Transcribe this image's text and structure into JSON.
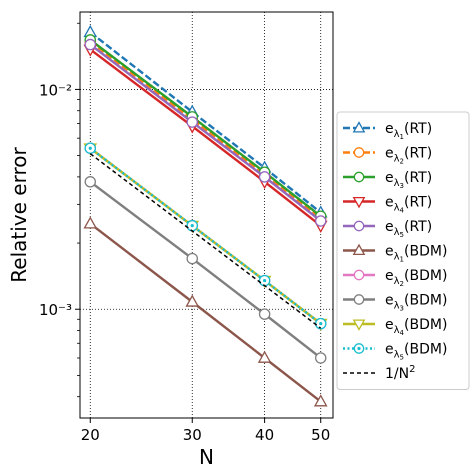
{
  "chart_data": {
    "type": "line",
    "x": [
      20,
      30,
      40,
      50
    ],
    "xlabel": "N",
    "ylabel": "Relative error",
    "x_scale": "log",
    "y_scale": "log",
    "xlim": [
      19.2,
      52.5
    ],
    "ylim": [
      0.00032,
      0.0225
    ],
    "x_ticks": [
      20,
      30,
      40,
      50
    ],
    "x_tick_labels": [
      "20",
      "30",
      "40",
      "50"
    ],
    "y_ticks": [
      0.001,
      0.01
    ],
    "y_tick_labels": [
      "10⁻³",
      "10⁻²"
    ],
    "grid": true,
    "legend_placement": "outside right",
    "series": [
      {
        "name": "eλ₁(RT)",
        "base": "e",
        "sub": "λ",
        "subsub": "1",
        "suffix": "(RT)",
        "values": [
          0.0182,
          0.0079,
          0.0044,
          0.00275
        ],
        "color": "#1f77b4",
        "dash": "7,3",
        "marker": "tri-up",
        "mfill": "#ffffff"
      },
      {
        "name": "eλ₂(RT)",
        "base": "e",
        "sub": "λ",
        "subsub": "2",
        "suffix": "(RT)",
        "values": [
          0.0165,
          0.0073,
          0.0041,
          0.00258
        ],
        "color": "#ff7f0e",
        "dash": "7,3",
        "marker": "circle",
        "mfill": "#ffffff"
      },
      {
        "name": "eλ₃(RT)",
        "base": "e",
        "sub": "λ",
        "subsub": "3",
        "suffix": "(RT)",
        "values": [
          0.0168,
          0.0075,
          0.0042,
          0.00265
        ],
        "color": "#2ca02c",
        "dash": "",
        "marker": "circle",
        "mfill": "#ffffff"
      },
      {
        "name": "eλ₄(RT)",
        "base": "e",
        "sub": "λ",
        "subsub": "4",
        "suffix": "(RT)",
        "values": [
          0.0152,
          0.0068,
          0.0038,
          0.0024
        ],
        "color": "#d62728",
        "dash": "",
        "marker": "tri-down",
        "mfill": "#ffffff"
      },
      {
        "name": "eλ₅(RT)",
        "base": "e",
        "sub": "λ",
        "subsub": "5",
        "suffix": "(RT)",
        "values": [
          0.016,
          0.0071,
          0.004,
          0.00252
        ],
        "color": "#9467bd",
        "dash": "",
        "marker": "circle",
        "mfill": "#ffffff"
      },
      {
        "name": "eλ₁(BDM)",
        "base": "e",
        "sub": "λ",
        "subsub": "1",
        "suffix": "(BDM)",
        "values": [
          0.00245,
          0.00108,
          0.0006,
          0.00038
        ],
        "color": "#8c564b",
        "dash": "",
        "marker": "tri-up",
        "mfill": "#ffffff"
      },
      {
        "name": "eλ₂(BDM)",
        "base": "e",
        "sub": "λ",
        "subsub": "2",
        "suffix": "(BDM)",
        "values": [
          0.0054,
          0.0024,
          0.00135,
          0.00086
        ],
        "color": "#e377c2",
        "dash": "",
        "marker": "circle",
        "mfill": "#ffffff"
      },
      {
        "name": "eλ₃(BDM)",
        "base": "e",
        "sub": "λ",
        "subsub": "3",
        "suffix": "(BDM)",
        "values": [
          0.0038,
          0.0017,
          0.00095,
          0.0006
        ],
        "color": "#7f7f7f",
        "dash": "",
        "marker": "circle",
        "mfill": "#ffffff"
      },
      {
        "name": "eλ₄(BDM)",
        "base": "e",
        "sub": "λ",
        "subsub": "4",
        "suffix": "(BDM)",
        "values": [
          0.0054,
          0.0024,
          0.00135,
          0.00086
        ],
        "color": "#bcbd22",
        "dash": "",
        "marker": "tri-down",
        "mfill": "#ffffff"
      },
      {
        "name": "eλ₅(BDM)",
        "base": "e",
        "sub": "λ",
        "subsub": "5",
        "suffix": "(BDM)",
        "values": [
          0.0054,
          0.0024,
          0.00135,
          0.00086
        ],
        "color": "#17becf",
        "dash": "2,2.5",
        "marker": "circle-dot",
        "mfill": "#ffffff"
      },
      {
        "name": "1/N²",
        "base": "1/N",
        "sup": "2",
        "suffix": "",
        "values": [
          0.0051,
          0.00227,
          0.00128,
          0.00082
        ],
        "color": "#000000",
        "dash": "4,3",
        "marker": "none",
        "mfill": "none"
      }
    ]
  }
}
